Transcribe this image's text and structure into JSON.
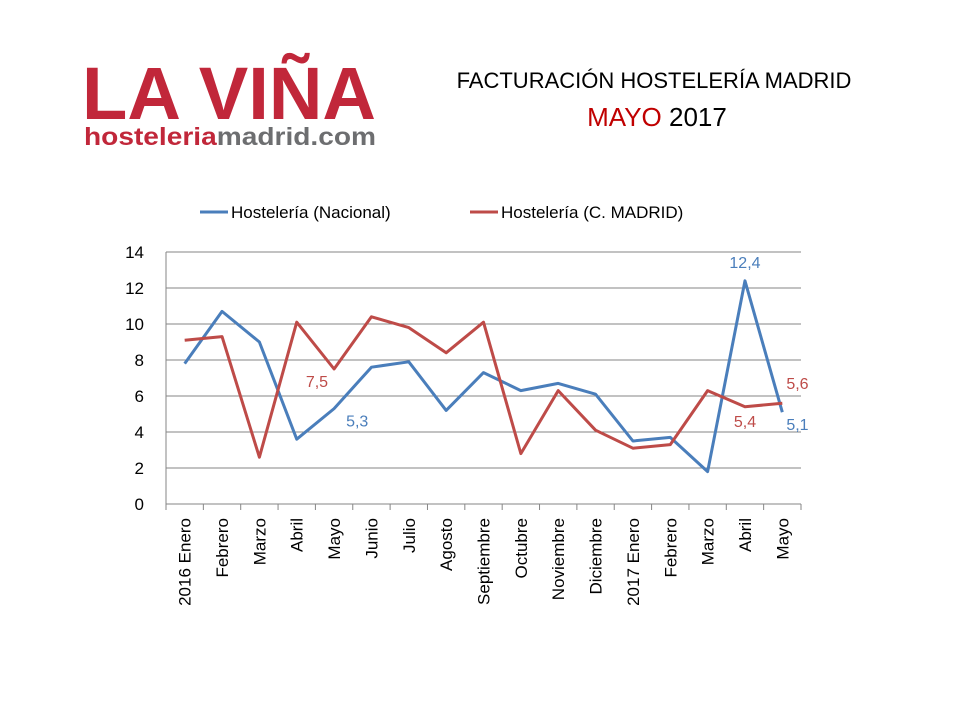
{
  "logo": {
    "name": "LA VIÑA",
    "site_part1": "hosteleria",
    "site_part2": "madrid.com"
  },
  "chart_data": {
    "type": "line",
    "title": "FACTURACIÓN HOSTELERÍA MADRID",
    "subtitle_parts": [
      "MAYO",
      "2017"
    ],
    "categories": [
      "2016 Enero",
      "Febrero",
      "Marzo",
      "Abril",
      "Mayo",
      "Junio",
      "Julio",
      "Agosto",
      "Septiembre",
      "Octubre",
      "Noviembre",
      "Diciembre",
      "2017 Enero",
      "Febrero",
      "Marzo",
      "Abril",
      "Mayo"
    ],
    "series": [
      {
        "name": "Hostelería (Nacional)",
        "color": "#4a7ebb",
        "values": [
          7.8,
          10.7,
          9.0,
          3.6,
          5.3,
          7.6,
          7.9,
          5.2,
          7.3,
          6.3,
          6.7,
          6.1,
          3.5,
          3.7,
          1.8,
          12.4,
          5.1
        ],
        "value_labels": [
          null,
          null,
          null,
          null,
          "5,3",
          null,
          null,
          null,
          null,
          null,
          null,
          null,
          null,
          null,
          null,
          "12,4",
          "5,1"
        ]
      },
      {
        "name": "Hostelería (C. MADRID)",
        "color": "#be4b48",
        "values": [
          9.1,
          9.3,
          2.6,
          10.1,
          7.5,
          10.4,
          9.8,
          8.4,
          10.1,
          2.8,
          6.3,
          4.1,
          3.1,
          3.3,
          6.3,
          5.4,
          5.6
        ],
        "value_labels": [
          null,
          null,
          null,
          null,
          "7,5",
          null,
          null,
          null,
          null,
          null,
          null,
          null,
          null,
          null,
          null,
          "5,4",
          "5,6"
        ]
      }
    ],
    "ylim": [
      0,
      14
    ],
    "yticks": [
      0,
      2,
      4,
      6,
      8,
      10,
      12,
      14
    ],
    "grid": true,
    "legend": "top"
  }
}
